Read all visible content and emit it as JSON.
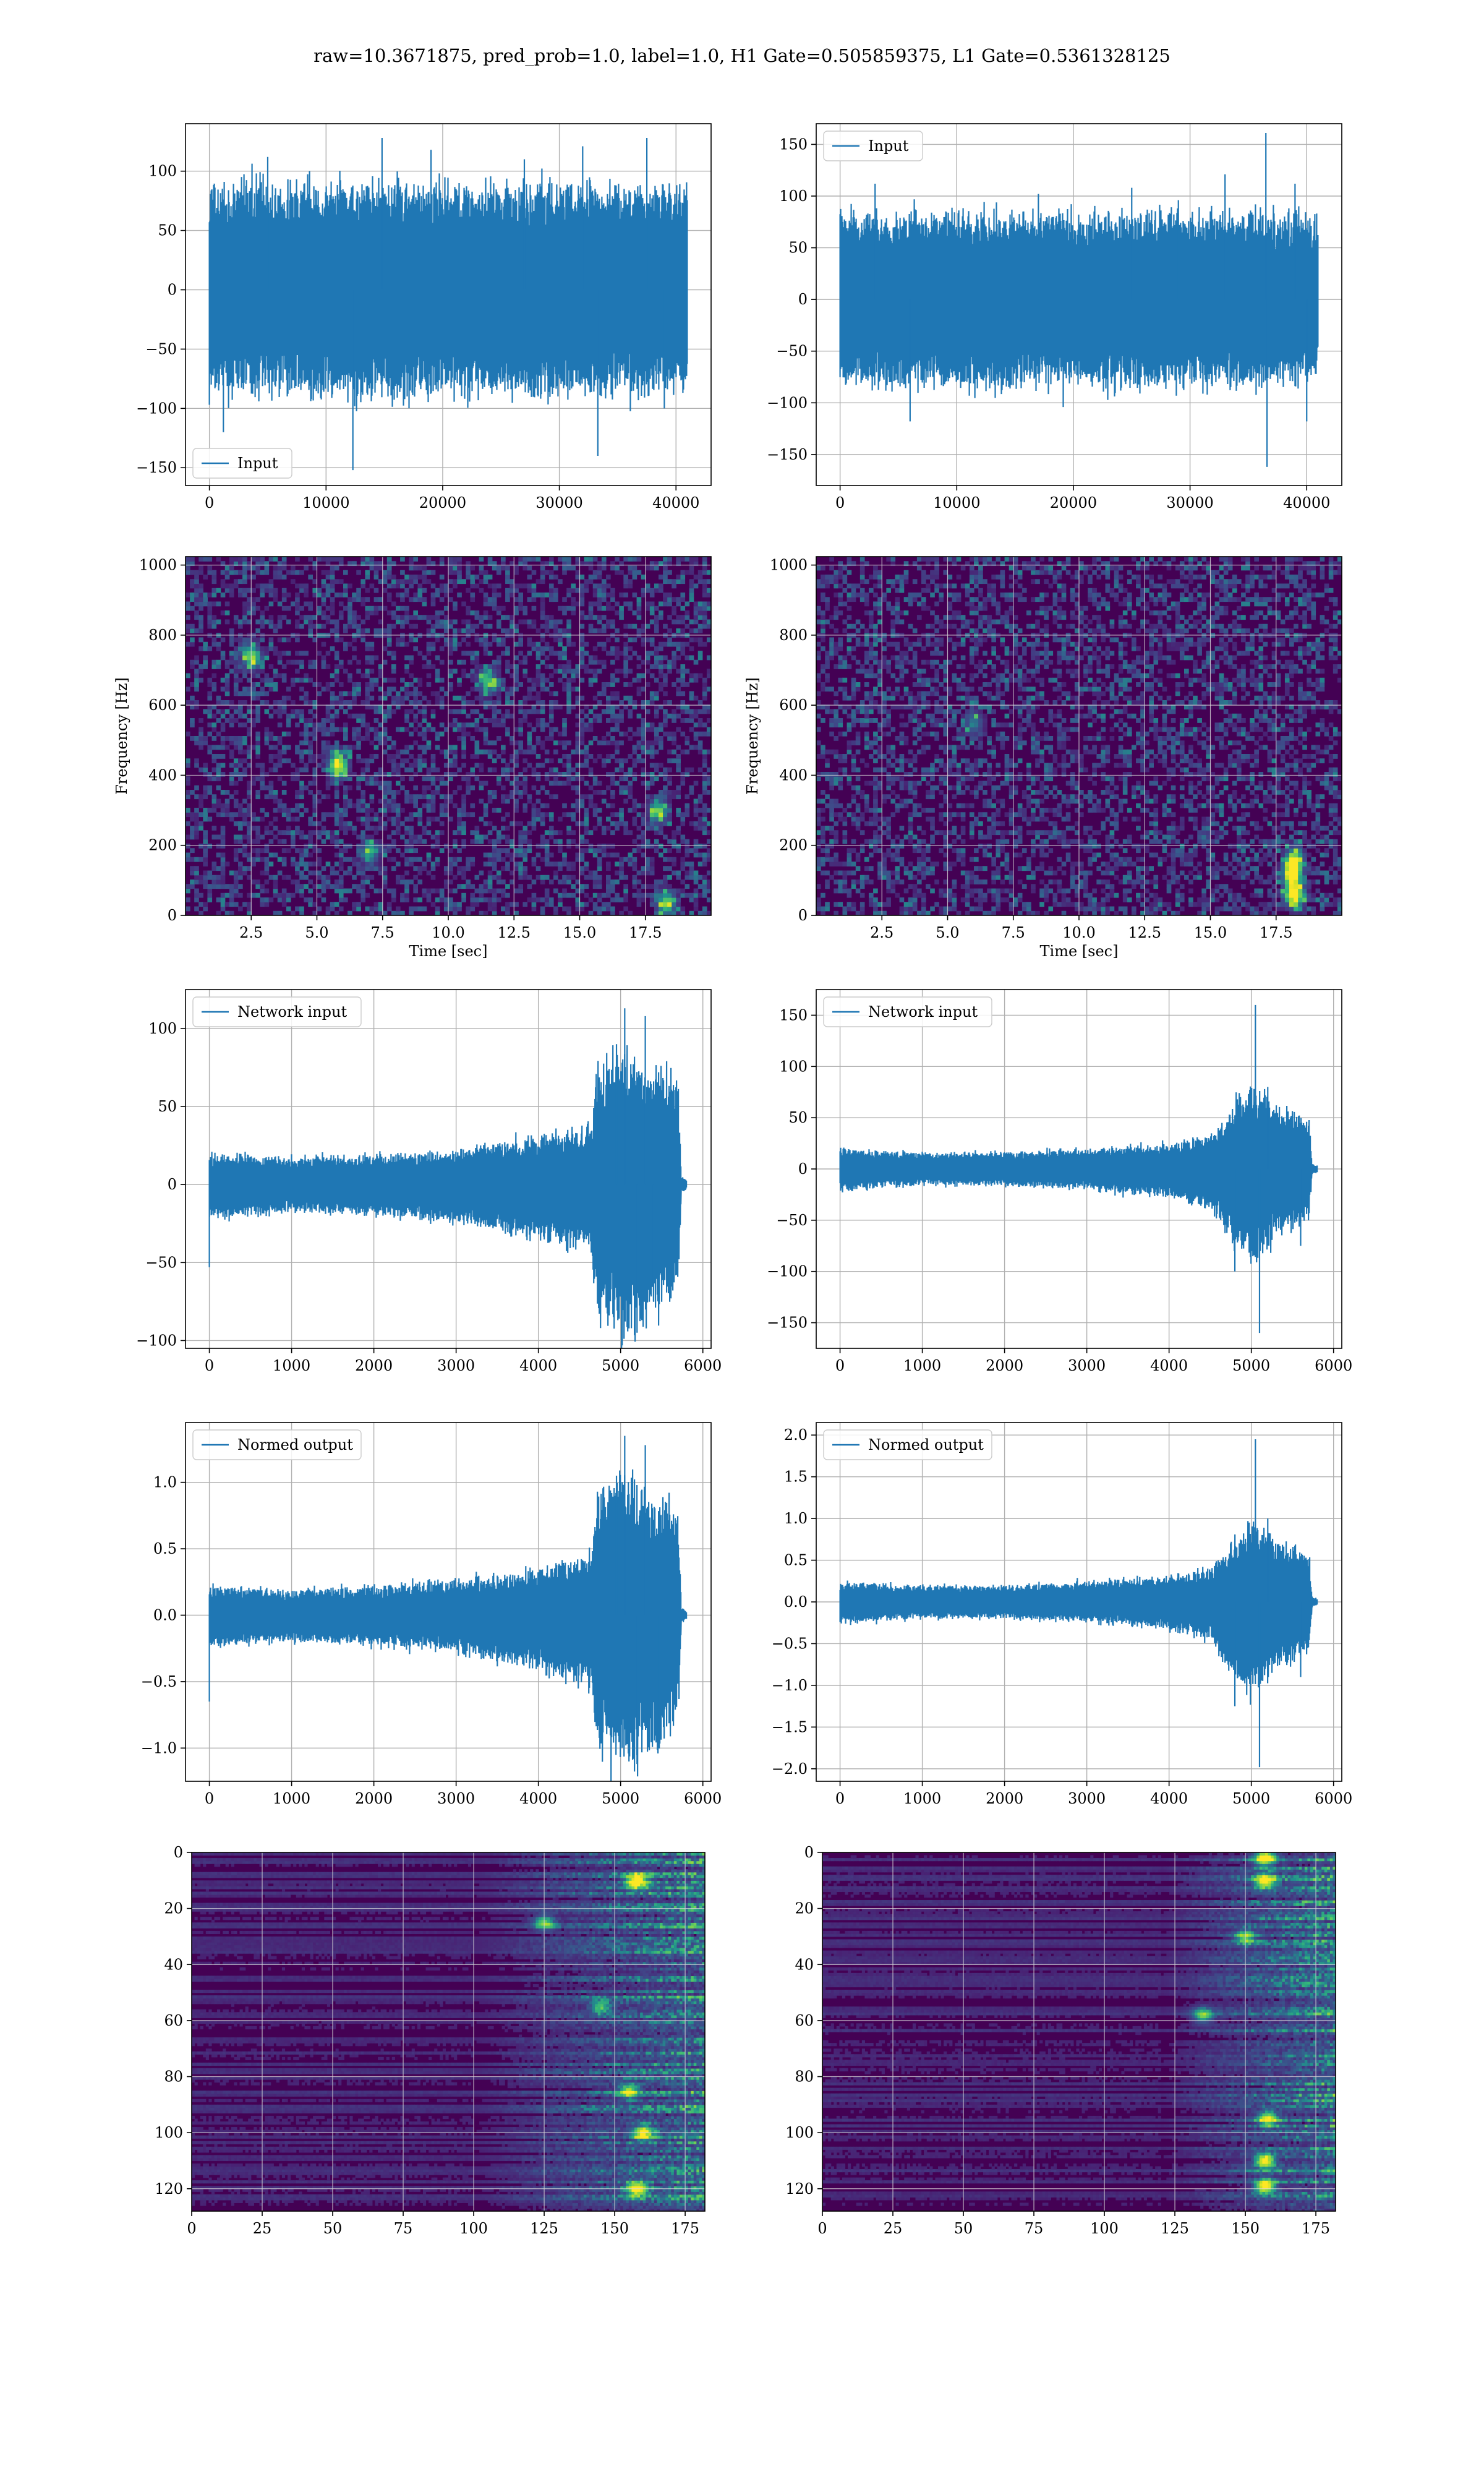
{
  "figure": {
    "suptitle": "raw=10.3671875, pred_prob=1.0, label=1.0, H1 Gate=0.505859375, L1 Gate=0.5361328125"
  },
  "colors": {
    "line": "#1f77b4",
    "grid": "#b0b0b0",
    "viridis_low": "#440154",
    "viridis_mid": "#21918c",
    "viridis_high": "#fde725"
  },
  "chart_data": [
    {
      "id": "input-h1",
      "type": "line",
      "row": 1,
      "col": 1,
      "xlim": [
        -2048,
        43008
      ],
      "ylim": [
        -165,
        140
      ],
      "xticks": [
        0,
        10000,
        20000,
        30000,
        40000
      ],
      "xtick_labels": [
        "0",
        "10000",
        "20000",
        "30000",
        "40000"
      ],
      "yticks": [
        -150,
        -100,
        -50,
        0,
        50,
        100
      ],
      "ytick_labels": [
        "−150",
        "−100",
        "−50",
        "0",
        "50",
        "100"
      ],
      "grid": true,
      "legend": "lower left",
      "series": [
        {
          "name": "Input",
          "x_range": [
            0,
            40960
          ],
          "envelope_points": [
            [
              0,
              80,
              -80
            ],
            [
              10000,
              82,
              -82
            ],
            [
              20000,
              80,
              -80
            ],
            [
              30000,
              82,
              -82
            ],
            [
              40960,
              78,
              -78
            ]
          ],
          "spikes": [
            [
              1200,
              -120
            ],
            [
              5000,
              112
            ],
            [
              12300,
              -152
            ],
            [
              14800,
              128
            ],
            [
              19000,
              118
            ],
            [
              27000,
              110
            ],
            [
              32000,
              121
            ],
            [
              33300,
              -140
            ],
            [
              37500,
              128
            ],
            [
              39000,
              -100
            ]
          ]
        }
      ]
    },
    {
      "id": "input-l1",
      "type": "line",
      "row": 1,
      "col": 2,
      "xlim": [
        -2048,
        43008
      ],
      "ylim": [
        -180,
        170
      ],
      "xticks": [
        0,
        10000,
        20000,
        30000,
        40000
      ],
      "xtick_labels": [
        "0",
        "10000",
        "20000",
        "30000",
        "40000"
      ],
      "yticks": [
        -150,
        -100,
        -50,
        0,
        50,
        100,
        150
      ],
      "ytick_labels": [
        "−150",
        "−100",
        "−50",
        "0",
        "50",
        "100",
        "150"
      ],
      "grid": true,
      "legend": "upper left",
      "series": [
        {
          "name": "Input",
          "x_range": [
            0,
            40960
          ],
          "envelope_points": [
            [
              0,
              75,
              -75
            ],
            [
              10000,
              78,
              -78
            ],
            [
              20000,
              76,
              -76
            ],
            [
              30000,
              78,
              -78
            ],
            [
              40960,
              72,
              -72
            ]
          ],
          "spikes": [
            [
              3000,
              112
            ],
            [
              6000,
              -118
            ],
            [
              17000,
              102
            ],
            [
              25000,
              108
            ],
            [
              29000,
              96
            ],
            [
              33000,
              121
            ],
            [
              36500,
              161
            ],
            [
              36600,
              -162
            ],
            [
              39000,
              112
            ],
            [
              40000,
              -118
            ]
          ]
        }
      ]
    },
    {
      "id": "spec-h1",
      "type": "heatmap",
      "row": 2,
      "col": 1,
      "xlim": [
        0,
        20
      ],
      "ylim": [
        0,
        1024
      ],
      "xticks": [
        2.5,
        5.0,
        7.5,
        10.0,
        12.5,
        15.0,
        17.5
      ],
      "xtick_labels": [
        "2.5",
        "5.0",
        "7.5",
        "10.0",
        "12.5",
        "15.0",
        "17.5"
      ],
      "yticks": [
        0,
        200,
        400,
        600,
        800,
        1000
      ],
      "ytick_labels": [
        "0",
        "200",
        "400",
        "600",
        "800",
        "1000"
      ],
      "xlabel": "Time [sec]",
      "ylabel": "Frequency [Hz]",
      "grid": true,
      "colormap": "viridis",
      "hotspots": [
        [
          5.8,
          430,
          0.9
        ],
        [
          2.5,
          740,
          0.7
        ],
        [
          11.5,
          670,
          0.6
        ],
        [
          18.0,
          300,
          0.6
        ],
        [
          18.3,
          35,
          0.7
        ],
        [
          7.0,
          180,
          0.5
        ]
      ]
    },
    {
      "id": "spec-l1",
      "type": "heatmap",
      "row": 2,
      "col": 2,
      "xlim": [
        0,
        20
      ],
      "ylim": [
        0,
        1024
      ],
      "xticks": [
        2.5,
        5.0,
        7.5,
        10.0,
        12.5,
        15.0,
        17.5
      ],
      "xtick_labels": [
        "2.5",
        "5.0",
        "7.5",
        "10.0",
        "12.5",
        "15.0",
        "17.5"
      ],
      "yticks": [
        0,
        200,
        400,
        600,
        800,
        1000
      ],
      "ytick_labels": [
        "0",
        "200",
        "400",
        "600",
        "800",
        "1000"
      ],
      "xlabel": "Time [sec]",
      "ylabel": "Frequency [Hz]",
      "grid": true,
      "colormap": "viridis",
      "hotspots": [
        [
          18.2,
          60,
          1.0
        ],
        [
          18.1,
          120,
          0.9
        ],
        [
          18.2,
          160,
          0.7
        ],
        [
          6.0,
          550,
          0.4
        ]
      ]
    },
    {
      "id": "network-input-h1",
      "type": "line",
      "row": 3,
      "col": 1,
      "xlim": [
        -290,
        6100
      ],
      "ylim": [
        -105,
        125
      ],
      "xticks": [
        0,
        1000,
        2000,
        3000,
        4000,
        5000,
        6000
      ],
      "xtick_labels": [
        "0",
        "1000",
        "2000",
        "3000",
        "4000",
        "5000",
        "6000"
      ],
      "yticks": [
        -100,
        -50,
        0,
        50,
        100
      ],
      "ytick_labels": [
        "−100",
        "−50",
        "0",
        "50",
        "100"
      ],
      "grid": true,
      "legend": "upper left",
      "series": [
        {
          "name": "Network input",
          "x_range": [
            0,
            5800
          ],
          "envelope_points": [
            [
              0,
              18,
              -20
            ],
            [
              1000,
              16,
              -16
            ],
            [
              2000,
              17,
              -18
            ],
            [
              3000,
              20,
              -22
            ],
            [
              4000,
              28,
              -32
            ],
            [
              4650,
              35,
              -40
            ],
            [
              4700,
              65,
              -75
            ],
            [
              5000,
              85,
              -90
            ],
            [
              5300,
              70,
              -85
            ],
            [
              5700,
              60,
              -60
            ],
            [
              5740,
              5,
              -5
            ],
            [
              5800,
              3,
              -3
            ]
          ],
          "spikes": [
            [
              0,
              -53
            ],
            [
              4950,
              90
            ],
            [
              5050,
              113
            ],
            [
              5200,
              -95
            ],
            [
              5300,
              108
            ],
            [
              5400,
              -75
            ]
          ]
        }
      ]
    },
    {
      "id": "network-input-l1",
      "type": "line",
      "row": 3,
      "col": 2,
      "xlim": [
        -290,
        6100
      ],
      "ylim": [
        -175,
        175
      ],
      "xticks": [
        0,
        1000,
        2000,
        3000,
        4000,
        5000,
        6000
      ],
      "xtick_labels": [
        "0",
        "1000",
        "2000",
        "3000",
        "4000",
        "5000",
        "6000"
      ],
      "yticks": [
        -150,
        -100,
        -50,
        0,
        50,
        100,
        150
      ],
      "ytick_labels": [
        "−150",
        "−100",
        "−50",
        "0",
        "50",
        "100",
        "150"
      ],
      "grid": true,
      "legend": "upper left",
      "series": [
        {
          "name": "Network input",
          "x_range": [
            0,
            5800
          ],
          "envelope_points": [
            [
              0,
              18,
              -20
            ],
            [
              1000,
              14,
              -14
            ],
            [
              2000,
              15,
              -15
            ],
            [
              3000,
              18,
              -18
            ],
            [
              4000,
              22,
              -25
            ],
            [
              4500,
              30,
              -35
            ],
            [
              4700,
              45,
              -60
            ],
            [
              5000,
              75,
              -85
            ],
            [
              5300,
              55,
              -60
            ],
            [
              5700,
              45,
              -45
            ],
            [
              5740,
              5,
              -5
            ],
            [
              5800,
              3,
              -3
            ]
          ],
          "spikes": [
            [
              4800,
              -100
            ],
            [
              5050,
              160
            ],
            [
              5100,
              -160
            ],
            [
              5200,
              80
            ],
            [
              5600,
              -75
            ]
          ]
        }
      ]
    },
    {
      "id": "normed-output-h1",
      "type": "line",
      "row": 4,
      "col": 1,
      "xlim": [
        -290,
        6100
      ],
      "ylim": [
        -1.25,
        1.45
      ],
      "xticks": [
        0,
        1000,
        2000,
        3000,
        4000,
        5000,
        6000
      ],
      "xtick_labels": [
        "0",
        "1000",
        "2000",
        "3000",
        "4000",
        "5000",
        "6000"
      ],
      "yticks": [
        -1.0,
        -0.5,
        0.0,
        0.5,
        1.0
      ],
      "ytick_labels": [
        "−1.0",
        "−0.5",
        "0.0",
        "0.5",
        "1.0"
      ],
      "grid": true,
      "legend": "upper left",
      "series": [
        {
          "name": "Normed output",
          "x_range": [
            0,
            5800
          ],
          "envelope_points": [
            [
              0,
              0.2,
              -0.22
            ],
            [
              1000,
              0.18,
              -0.18
            ],
            [
              2000,
              0.2,
              -0.2
            ],
            [
              3000,
              0.24,
              -0.26
            ],
            [
              4000,
              0.32,
              -0.38
            ],
            [
              4650,
              0.42,
              -0.48
            ],
            [
              4700,
              0.8,
              -0.9
            ],
            [
              5000,
              1.0,
              -1.05
            ],
            [
              5300,
              0.85,
              -1.0
            ],
            [
              5700,
              0.7,
              -0.72
            ],
            [
              5740,
              0.06,
              -0.06
            ],
            [
              5800,
              0.03,
              -0.03
            ]
          ],
          "spikes": [
            [
              0,
              -0.65
            ],
            [
              4950,
              1.05
            ],
            [
              5050,
              1.35
            ],
            [
              5200,
              -1.12
            ],
            [
              5300,
              1.28
            ],
            [
              5450,
              -0.9
            ]
          ]
        }
      ]
    },
    {
      "id": "normed-output-l1",
      "type": "line",
      "row": 4,
      "col": 2,
      "xlim": [
        -290,
        6100
      ],
      "ylim": [
        -2.15,
        2.15
      ],
      "xticks": [
        0,
        1000,
        2000,
        3000,
        4000,
        5000,
        6000
      ],
      "xtick_labels": [
        "0",
        "1000",
        "2000",
        "3000",
        "4000",
        "5000",
        "6000"
      ],
      "yticks": [
        -2.0,
        -1.5,
        -1.0,
        -0.5,
        0.0,
        0.5,
        1.0,
        1.5,
        2.0
      ],
      "ytick_labels": [
        "−2.0",
        "−1.5",
        "−1.0",
        "−0.5",
        "0.0",
        "0.5",
        "1.0",
        "1.5",
        "2.0"
      ],
      "grid": true,
      "legend": "upper left",
      "series": [
        {
          "name": "Normed output",
          "x_range": [
            0,
            5800
          ],
          "envelope_points": [
            [
              0,
              0.22,
              -0.24
            ],
            [
              1000,
              0.18,
              -0.18
            ],
            [
              2000,
              0.18,
              -0.18
            ],
            [
              3000,
              0.22,
              -0.22
            ],
            [
              4000,
              0.28,
              -0.3
            ],
            [
              4500,
              0.38,
              -0.42
            ],
            [
              4700,
              0.55,
              -0.72
            ],
            [
              5000,
              0.92,
              -1.05
            ],
            [
              5300,
              0.68,
              -0.74
            ],
            [
              5700,
              0.55,
              -0.55
            ],
            [
              5740,
              0.06,
              -0.06
            ],
            [
              5800,
              0.03,
              -0.03
            ]
          ],
          "spikes": [
            [
              4800,
              -1.25
            ],
            [
              5050,
              1.95
            ],
            [
              5100,
              -1.98
            ],
            [
              5200,
              1.0
            ],
            [
              5600,
              -0.9
            ]
          ]
        }
      ]
    },
    {
      "id": "features-h1",
      "type": "heatmap",
      "row": 5,
      "col": 1,
      "xlim": [
        0,
        182
      ],
      "ylim": [
        128,
        0
      ],
      "xticks": [
        0,
        25,
        50,
        75,
        100,
        125,
        150,
        175
      ],
      "xtick_labels": [
        "0",
        "25",
        "50",
        "75",
        "100",
        "125",
        "150",
        "175"
      ],
      "yticks": [
        0,
        20,
        40,
        60,
        80,
        100,
        120
      ],
      "ytick_labels": [
        "0",
        "20",
        "40",
        "60",
        "80",
        "100",
        "120"
      ],
      "grid": true,
      "colormap": "viridis",
      "activation_onset": 100,
      "peak_columns": [
        155,
        158,
        162
      ],
      "hotspots": [
        [
          158,
          10,
          1.0
        ],
        [
          158,
          120,
          0.9
        ],
        [
          160,
          100,
          0.8
        ],
        [
          125,
          25,
          0.6
        ],
        [
          145,
          55,
          0.5
        ],
        [
          155,
          85,
          0.7
        ]
      ]
    },
    {
      "id": "features-l1",
      "type": "heatmap",
      "row": 5,
      "col": 2,
      "xlim": [
        0,
        182
      ],
      "ylim": [
        128,
        0
      ],
      "xticks": [
        0,
        25,
        50,
        75,
        100,
        125,
        150,
        175
      ],
      "xtick_labels": [
        "0",
        "25",
        "50",
        "75",
        "100",
        "125",
        "150",
        "175"
      ],
      "yticks": [
        0,
        20,
        40,
        60,
        80,
        100,
        120
      ],
      "ytick_labels": [
        "0",
        "20",
        "40",
        "60",
        "80",
        "100",
        "120"
      ],
      "grid": true,
      "colormap": "viridis",
      "activation_onset": 120,
      "peak_columns": [
        150,
        155,
        158
      ],
      "hotspots": [
        [
          157,
          2,
          1.0
        ],
        [
          157,
          10,
          0.9
        ],
        [
          157,
          110,
          0.9
        ],
        [
          157,
          119,
          1.0
        ],
        [
          158,
          95,
          0.8
        ],
        [
          135,
          58,
          0.6
        ],
        [
          150,
          30,
          0.6
        ]
      ]
    }
  ]
}
